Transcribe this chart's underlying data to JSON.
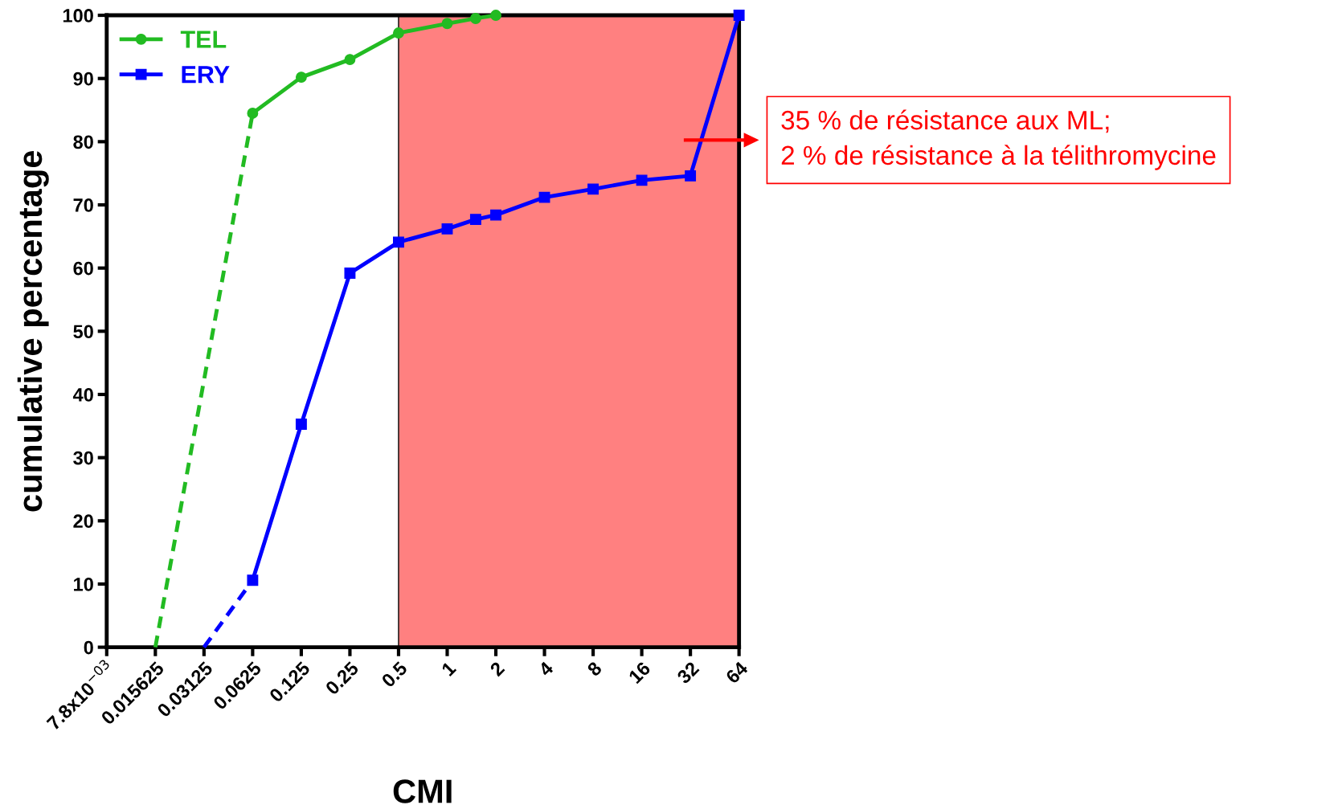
{
  "chart_data": {
    "type": "line",
    "xlabel": "CMI",
    "ylabel": "cumulative percentage",
    "log": "x",
    "xlim": [
      0.0078125,
      64
    ],
    "xticks": [
      {
        "value": 0.0078125,
        "label": "7.8x10$^{−03}$"
      },
      0.015625,
      0.03125,
      0.0625,
      0.125,
      0.25,
      0.5,
      1,
      2,
      4,
      8,
      16,
      32,
      64
    ],
    "ylim": [
      0,
      100
    ],
    "yticks": [
      0,
      10,
      20,
      30,
      40,
      50,
      60,
      70,
      80,
      90,
      100
    ],
    "grid": false,
    "legend": "top left",
    "series": [
      {
        "name": "TEL",
        "color": "#22bb22",
        "marker": "circle",
        "line_style": "solid",
        "x": [
          0.0625,
          0.125,
          0.25,
          0.5,
          1,
          1.5,
          2
        ],
        "values": [
          84.5,
          90.2,
          93.0,
          97.2,
          98.7,
          99.5,
          100
        ]
      },
      {
        "name": "ERY",
        "color": "#0000ff",
        "marker": "square",
        "line_style": "solid",
        "x": [
          0.0625,
          0.125,
          0.25,
          0.5,
          1,
          1.5,
          2,
          4,
          8,
          16,
          32,
          64
        ],
        "values": [
          10.6,
          35.3,
          59.2,
          64.1,
          66.2,
          67.7,
          68.4,
          71.2,
          72.5,
          73.9,
          74.6,
          100
        ]
      },
      {
        "color": "#22bb22",
        "marker": "none",
        "line_style": "dashed",
        "x": [
          0.015625,
          0.0625
        ],
        "values": [
          0,
          84.5
        ]
      },
      {
        "color": "#0000ff",
        "marker": "none",
        "line_style": "dashed",
        "x": [
          0.03125,
          0.0625
        ],
        "values": [
          0,
          10.6
        ]
      }
    ],
    "bands": [
      {
        "axis": "x",
        "from": 0.5,
        "to": 64,
        "color": "#ff8080"
      }
    ],
    "annotations": [
      "35 % de résistance aux ML;\n2 % de résistance à la télithromycine"
    ]
  }
}
